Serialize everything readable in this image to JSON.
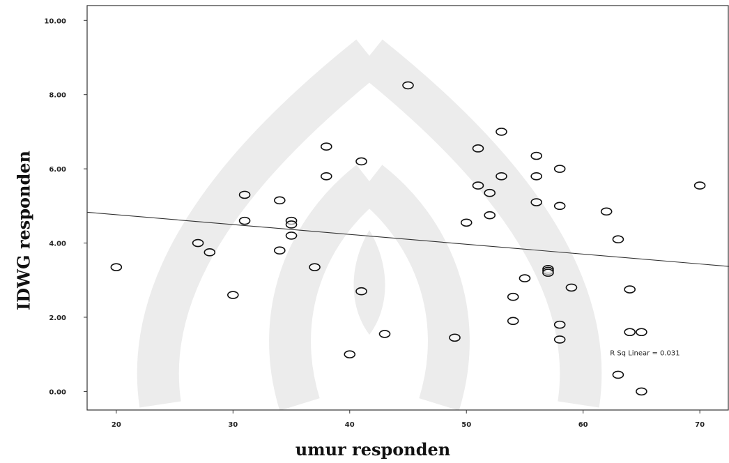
{
  "chart_data": {
    "type": "scatter",
    "xlabel": "umur responden",
    "ylabel": "IDWG responden",
    "xlim": [
      17.5,
      72.5
    ],
    "ylim": [
      -0.5,
      10.4
    ],
    "xticks": [
      20,
      30,
      40,
      50,
      60,
      70
    ],
    "yticks": [
      0,
      2,
      4,
      6,
      8,
      10
    ],
    "xtick_labels": [
      "20",
      "30",
      "40",
      "50",
      "60",
      "70"
    ],
    "ytick_labels": [
      "0.00",
      "2.00",
      "4.00",
      "6.00",
      "8.00",
      "10.00"
    ],
    "grid": false,
    "points": [
      {
        "x": 20,
        "y": 3.35
      },
      {
        "x": 27,
        "y": 4.0
      },
      {
        "x": 28,
        "y": 3.75
      },
      {
        "x": 30,
        "y": 2.6
      },
      {
        "x": 31,
        "y": 5.3
      },
      {
        "x": 31,
        "y": 4.6
      },
      {
        "x": 34,
        "y": 5.15
      },
      {
        "x": 34,
        "y": 3.8
      },
      {
        "x": 35,
        "y": 4.6
      },
      {
        "x": 35,
        "y": 4.5
      },
      {
        "x": 35,
        "y": 4.2
      },
      {
        "x": 37,
        "y": 3.35
      },
      {
        "x": 38,
        "y": 6.6
      },
      {
        "x": 38,
        "y": 5.8
      },
      {
        "x": 40,
        "y": 1.0
      },
      {
        "x": 41,
        "y": 6.2
      },
      {
        "x": 41,
        "y": 2.7
      },
      {
        "x": 43,
        "y": 1.55
      },
      {
        "x": 45,
        "y": 8.25
      },
      {
        "x": 49,
        "y": 1.45
      },
      {
        "x": 50,
        "y": 4.55
      },
      {
        "x": 51,
        "y": 6.55
      },
      {
        "x": 51,
        "y": 5.55
      },
      {
        "x": 52,
        "y": 5.35
      },
      {
        "x": 52,
        "y": 4.75
      },
      {
        "x": 53,
        "y": 7.0
      },
      {
        "x": 53,
        "y": 5.8
      },
      {
        "x": 54,
        "y": 2.55
      },
      {
        "x": 54,
        "y": 1.9
      },
      {
        "x": 55,
        "y": 3.05
      },
      {
        "x": 56,
        "y": 6.35
      },
      {
        "x": 56,
        "y": 5.8
      },
      {
        "x": 56,
        "y": 5.1
      },
      {
        "x": 57,
        "y": 3.3
      },
      {
        "x": 57,
        "y": 3.25
      },
      {
        "x": 57,
        "y": 3.2
      },
      {
        "x": 58,
        "y": 6.0
      },
      {
        "x": 58,
        "y": 5.0
      },
      {
        "x": 58,
        "y": 1.8
      },
      {
        "x": 58,
        "y": 1.4
      },
      {
        "x": 59,
        "y": 2.8
      },
      {
        "x": 62,
        "y": 4.85
      },
      {
        "x": 63,
        "y": 4.1
      },
      {
        "x": 63,
        "y": 0.45
      },
      {
        "x": 64,
        "y": 2.75
      },
      {
        "x": 64,
        "y": 1.6
      },
      {
        "x": 65,
        "y": 1.6
      },
      {
        "x": 65,
        "y": 0.0
      },
      {
        "x": 70,
        "y": 5.55
      }
    ],
    "fit_line": {
      "x": [
        17.5,
        72.5
      ],
      "y": [
        4.83,
        3.37
      ]
    },
    "annotation": {
      "text": "R Sq Linear = 0.031",
      "x": 62.3,
      "y": 1.05
    }
  }
}
